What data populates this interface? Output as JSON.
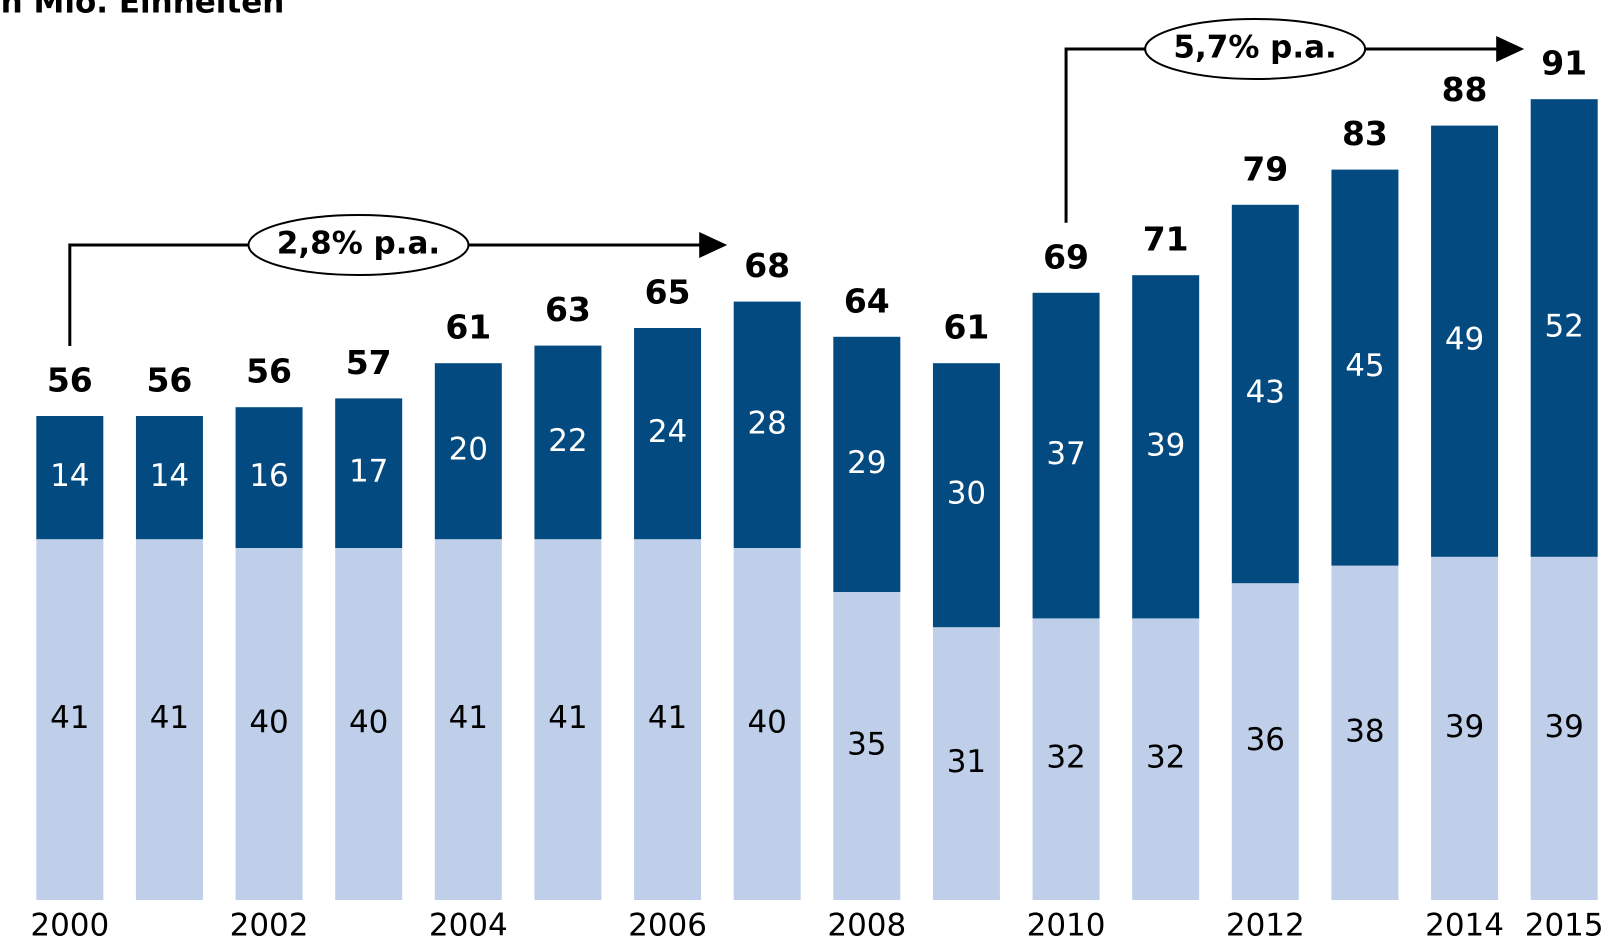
{
  "chart_data": {
    "type": "stacked_bar",
    "title": "in Mio. Einheiten",
    "categories": [
      "2000",
      null,
      "2002",
      null,
      "2004",
      null,
      "2006",
      null,
      "2008",
      null,
      "2010",
      null,
      "2012",
      null,
      "2014",
      "2015"
    ],
    "series": [
      {
        "color": "#bfcfe9",
        "values": [
          41,
          41,
          40,
          40,
          41,
          41,
          41,
          40,
          35,
          31,
          32,
          32,
          36,
          38,
          39,
          39
        ]
      },
      {
        "color": "#034a81",
        "values": [
          14,
          14,
          16,
          17,
          20,
          22,
          24,
          28,
          29,
          30,
          37,
          39,
          43,
          45,
          49,
          52
        ]
      }
    ],
    "totals": [
      56,
      56,
      56,
      57,
      61,
      63,
      65,
      68,
      64,
      61,
      69,
      71,
      79,
      83,
      88,
      91
    ],
    "annotations": [
      "2,8% p.a.",
      "5,7% p.a."
    ],
    "ylim": [
      0,
      100
    ]
  }
}
